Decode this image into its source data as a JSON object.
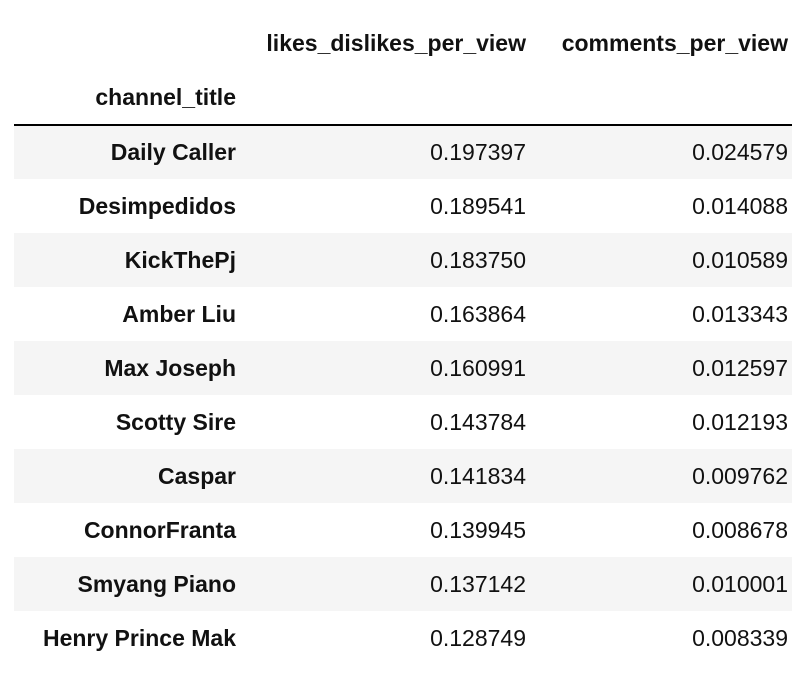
{
  "table": {
    "columns": [
      "",
      "likes_dislikes_per_view",
      "comments_per_view"
    ],
    "index_name": "channel_title",
    "rows": [
      {
        "channel": "Daily Caller",
        "likes_dislikes_per_view": "0.197397",
        "comments_per_view": "0.024579"
      },
      {
        "channel": "Desimpedidos",
        "likes_dislikes_per_view": "0.189541",
        "comments_per_view": "0.014088"
      },
      {
        "channel": "KickThePj",
        "likes_dislikes_per_view": "0.183750",
        "comments_per_view": "0.010589"
      },
      {
        "channel": "Amber Liu",
        "likes_dislikes_per_view": "0.163864",
        "comments_per_view": "0.013343"
      },
      {
        "channel": "Max Joseph",
        "likes_dislikes_per_view": "0.160991",
        "comments_per_view": "0.012597"
      },
      {
        "channel": "Scotty Sire",
        "likes_dislikes_per_view": "0.143784",
        "comments_per_view": "0.012193"
      },
      {
        "channel": "Caspar",
        "likes_dislikes_per_view": "0.141834",
        "comments_per_view": "0.009762"
      },
      {
        "channel": "ConnorFranta",
        "likes_dislikes_per_view": "0.139945",
        "comments_per_view": "0.008678"
      },
      {
        "channel": "Smyang Piano",
        "likes_dislikes_per_view": "0.137142",
        "comments_per_view": "0.010001"
      },
      {
        "channel": "Henry Prince Mak",
        "likes_dislikes_per_view": "0.128749",
        "comments_per_view": "0.008339"
      }
    ]
  }
}
